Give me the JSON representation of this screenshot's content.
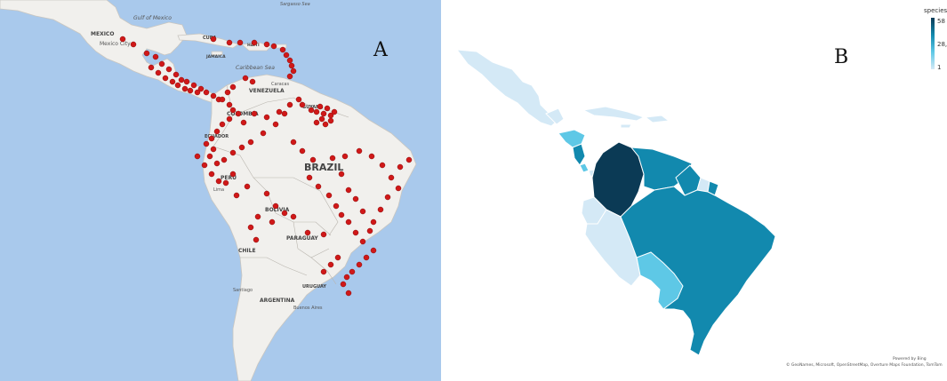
{
  "panel_a": {
    "letter": "A",
    "ocean_labels": {
      "gulf": "Gulf of Mexico",
      "caribbean": "Caribbean Sea",
      "sargasso": "Sargasso Sea"
    },
    "country_labels": {
      "mexico": "MEXICO",
      "mexico_city": "Mexico City",
      "cuba": "CUBA",
      "haiti": "HAITI",
      "jamaica": "JAMAICA",
      "venezuela": "VENEZUELA",
      "colombia": "COLOMBIA",
      "ecuador": "ECUADOR",
      "peru": "PERU",
      "brazil": "BRAZIL",
      "bolivia": "BOLIVIA",
      "paraguay": "PARAGUAY",
      "chile": "CHILE",
      "argentina": "ARGENTINA",
      "uruguay": "URUGUAY",
      "guyana": "GUYANA",
      "santiago": "Santiago",
      "buenos_aires": "Buenos Aires",
      "caracas": "Caracas",
      "lima": "Lima"
    }
  },
  "panel_b": {
    "letter": "B",
    "legend": {
      "title": "species",
      "max": "58",
      "mid": "28,5",
      "min": "1"
    },
    "credit_line1": "Powered by Bing",
    "credit_line2": "© GeoNames, Microsoft, OpenStreetMap, Overture Maps Foundation, TomTom"
  },
  "colors": {
    "ocean": "#a9c9ec",
    "land": "#f1f0ed",
    "point": "#d01818",
    "c1": "#d4e9f6",
    "c2": "#5ec8e6",
    "c3": "#1289ae",
    "c4": "#0b3a55"
  }
}
